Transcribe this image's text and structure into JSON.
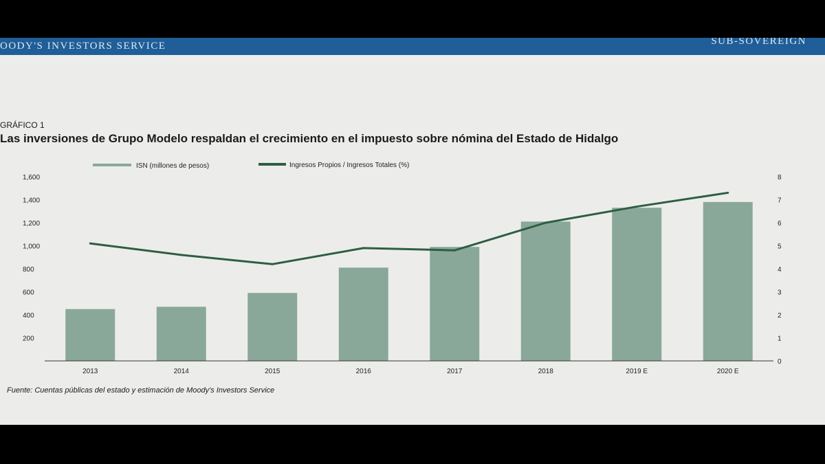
{
  "header": {
    "left_text": "OODY'S INVESTORS SERVICE",
    "right_text": "SUB-SOVEREIGN"
  },
  "figure": {
    "label": "GRÁFICO 1",
    "title": "Las inversiones de Grupo Modelo respaldan el crecimiento en el impuesto sobre nómina del Estado de Hidalgo",
    "source": "Fuente: Cuentas públicas del estado y estimación de Moody's Investors Service"
  },
  "colors": {
    "bar": "#8aa89a",
    "line": "#2d5e42",
    "banner": "#1f5e98"
  },
  "chart_data": {
    "type": "bar",
    "categories": [
      "2013",
      "2014",
      "2015",
      "2016",
      "2017",
      "2018",
      "2019 E",
      "2020 E"
    ],
    "series": [
      {
        "name": "ISN (millones de pesos)",
        "type": "bar",
        "axis": "left",
        "values": [
          450,
          470,
          590,
          810,
          990,
          1210,
          1330,
          1380
        ]
      },
      {
        "name": "Ingresos Propios / Ingresos Totales (%)",
        "type": "line",
        "axis": "right",
        "values": [
          5.1,
          4.6,
          4.2,
          4.9,
          4.8,
          6.0,
          6.7,
          7.3
        ]
      }
    ],
    "y_left_ticks": [
      "200",
      "400",
      "600",
      "800",
      "1,000",
      "1,200",
      "1,400",
      "1,600"
    ],
    "y_right_ticks": [
      "0",
      "1",
      "2",
      "3",
      "4",
      "5",
      "6",
      "7",
      "8"
    ],
    "ylim_left": [
      0,
      1600
    ],
    "ylim_right": [
      0,
      8
    ],
    "legend_position": "top",
    "grid": false
  }
}
